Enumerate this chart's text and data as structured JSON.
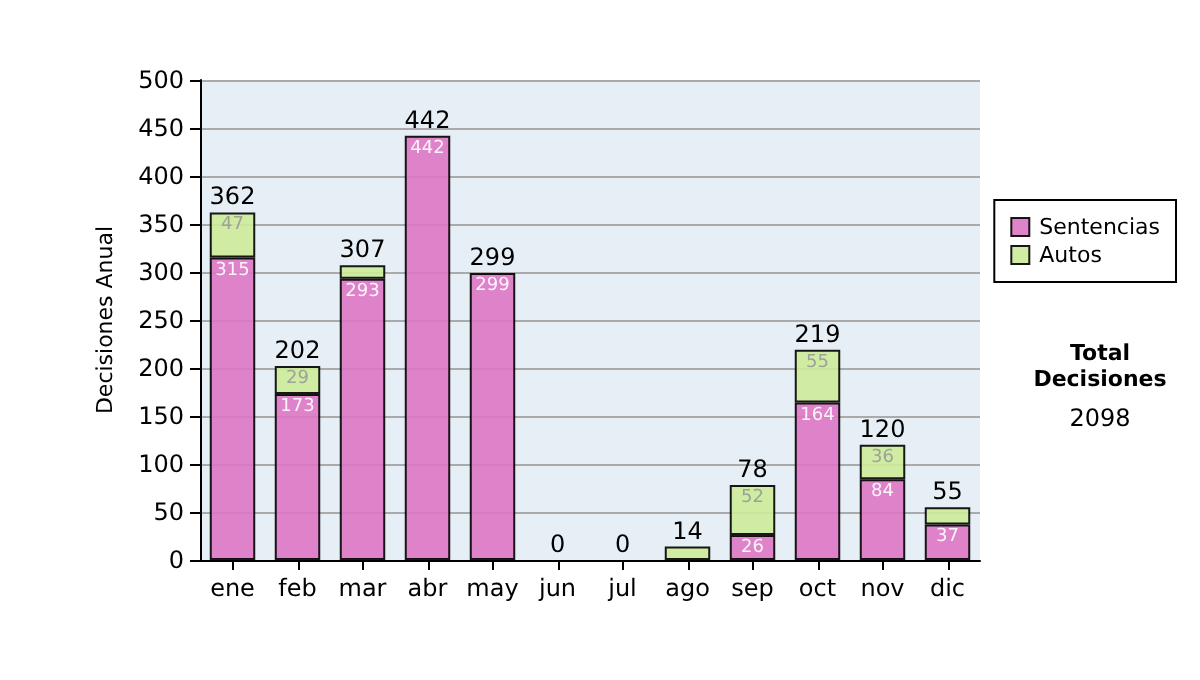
{
  "chart_data": {
    "type": "bar",
    "stacked": true,
    "ylabel": "Decisiones Anual",
    "categories": [
      "ene",
      "feb",
      "mar",
      "abr",
      "may",
      "jun",
      "jul",
      "ago",
      "sep",
      "oct",
      "nov",
      "dic"
    ],
    "series": [
      {
        "name": "Sentencias",
        "color": "#dd77c4",
        "values": [
          315,
          173,
          293,
          442,
          299,
          0,
          0,
          0,
          26,
          164,
          84,
          37
        ],
        "value_labels": [
          "315",
          "173",
          "293",
          "442",
          "299",
          null,
          null,
          null,
          "26",
          "164",
          "84",
          "37"
        ]
      },
      {
        "name": "Autos",
        "color": "#cceb99",
        "values": [
          47,
          29,
          14,
          0,
          0,
          0,
          0,
          14,
          52,
          55,
          36,
          18
        ],
        "value_labels": [
          "47",
          "29",
          null,
          null,
          null,
          null,
          null,
          null,
          "52",
          "55",
          "36",
          null
        ]
      }
    ],
    "totals": [
      "362",
      "202",
      "307",
      "442",
      "299",
      "0",
      "0",
      "14",
      "78",
      "219",
      "120",
      "55"
    ],
    "ylim": [
      0,
      500
    ],
    "yticks": [
      0,
      50,
      100,
      150,
      200,
      250,
      300,
      350,
      400,
      450,
      500
    ],
    "grid": "y",
    "legend": "right",
    "annotations": [
      "Total Decisiones",
      "2098"
    ]
  }
}
